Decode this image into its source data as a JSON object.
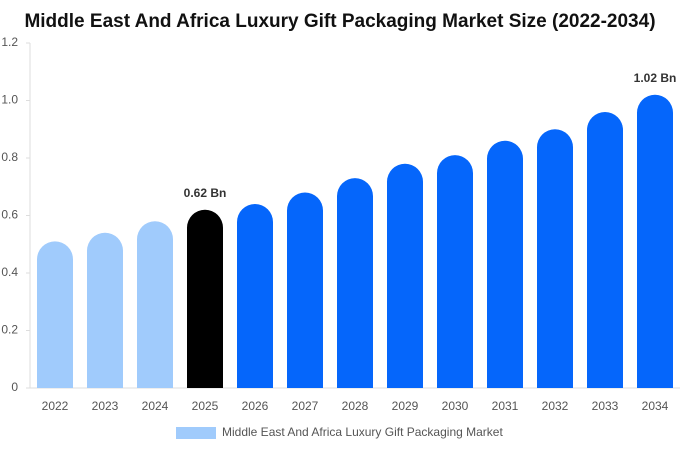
{
  "chart_data": {
    "type": "bar",
    "title": "Middle East And Africa Luxury Gift Packaging Market Size (2022-2034)",
    "categories": [
      "2022",
      "2023",
      "2024",
      "2025",
      "2026",
      "2027",
      "2028",
      "2029",
      "2030",
      "2031",
      "2032",
      "2033",
      "2034"
    ],
    "series": [
      {
        "name": "Middle East And Africa Luxury Gift Packaging Market",
        "color": "#a0cbfc",
        "colors": [
          "#a0cbfc",
          "#a0cbfc",
          "#a0cbfc",
          "#000000",
          "#0566fb",
          "#0566fb",
          "#0566fb",
          "#0566fb",
          "#0566fb",
          "#0566fb",
          "#0566fb",
          "#0566fb",
          "#0566fb"
        ],
        "values": [
          0.51,
          0.54,
          0.58,
          0.62,
          0.64,
          0.68,
          0.73,
          0.78,
          0.81,
          0.86,
          0.9,
          0.96,
          1.02
        ],
        "value_labels": [
          null,
          null,
          null,
          "0.62 Bn",
          null,
          null,
          null,
          null,
          null,
          null,
          null,
          null,
          "1.02 Bn"
        ]
      }
    ],
    "ylim": [
      0,
      1.2
    ],
    "yticks": [
      0,
      0.2,
      0.4,
      0.6,
      0.8,
      {
        "value": 1,
        "label": "1.0"
      },
      1.2
    ],
    "grid": false,
    "legend": "bottom"
  }
}
